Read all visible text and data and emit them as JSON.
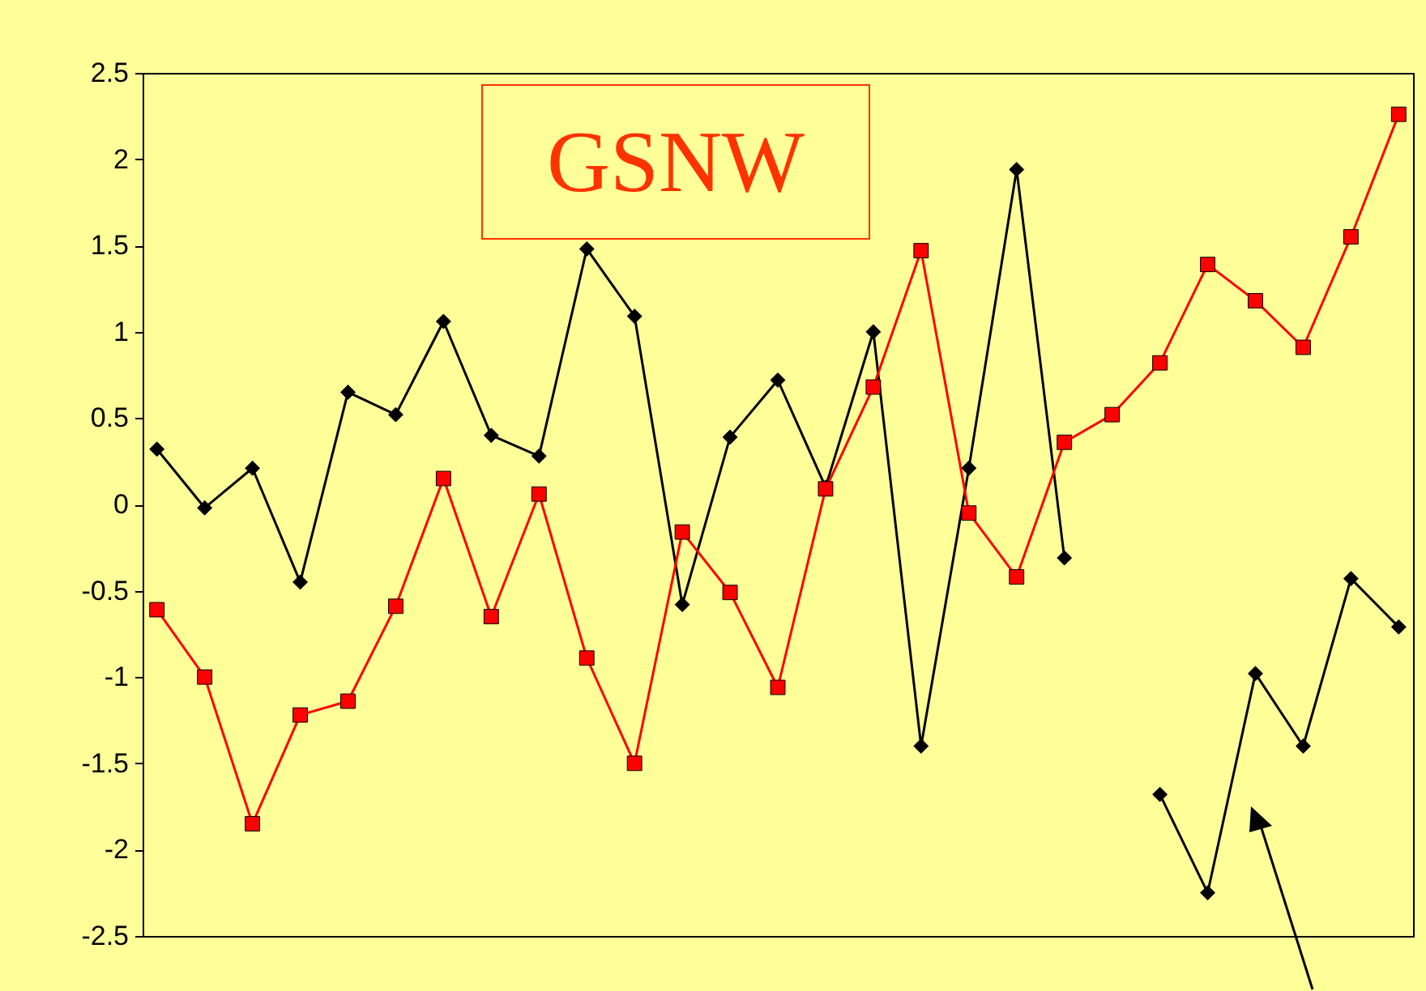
{
  "chart_data": {
    "type": "line",
    "annotations": [
      "GSNW"
    ],
    "categories": [
      null,
      null,
      null,
      null,
      null,
      null,
      null,
      null,
      null,
      null,
      null,
      null,
      null,
      null,
      null,
      null,
      null,
      null,
      null,
      null,
      null,
      null,
      null,
      null,
      null,
      null,
      null
    ],
    "series": [
      {
        "color": "#000000",
        "marker": "diamond",
        "values": [
          0.32,
          -0.02,
          0.21,
          -0.45,
          0.65,
          0.52,
          1.06,
          0.4,
          0.28,
          1.48,
          1.09,
          -0.58,
          0.39,
          0.72,
          0.1,
          1.0,
          -1.4,
          0.21,
          1.94,
          -0.31,
          null,
          -1.68,
          -2.25,
          -0.98,
          -1.4,
          -0.43,
          -0.71
        ]
      },
      {
        "color": "#ff0000",
        "marker": "square",
        "values": [
          -0.61,
          -1.0,
          -1.85,
          -1.22,
          -1.14,
          -0.59,
          0.15,
          -0.65,
          0.06,
          -0.89,
          -1.5,
          -0.16,
          -0.51,
          -1.06,
          0.09,
          0.68,
          1.47,
          -0.05,
          -0.42,
          0.36,
          0.52,
          0.82,
          1.39,
          1.18,
          0.91,
          1.55,
          2.26
        ]
      }
    ],
    "ylim": [
      -2.5,
      2.5
    ],
    "yticks": [
      -2.5,
      -2,
      -1.5,
      -1,
      -0.5,
      0,
      0.5,
      1,
      1.5,
      2,
      2.5
    ],
    "tick_labels": "y",
    "grid": false
  }
}
